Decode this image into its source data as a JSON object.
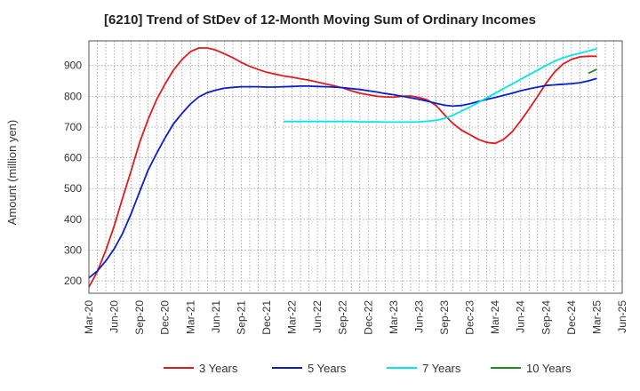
{
  "chart_data": {
    "type": "line",
    "title": "[6210]  Trend of StDev of 12-Month Moving Sum of Ordinary Incomes",
    "ylabel": "Amount (million yen)",
    "xlabel": "",
    "ylim": [
      160,
      980
    ],
    "yticks": [
      200,
      300,
      400,
      500,
      600,
      700,
      800,
      900
    ],
    "x_categories": [
      "Mar-20",
      "Jun-20",
      "Sep-20",
      "Dec-20",
      "Mar-21",
      "Jun-21",
      "Sep-21",
      "Dec-21",
      "Mar-22",
      "Jun-22",
      "Sep-22",
      "Dec-22",
      "Mar-23",
      "Jun-23",
      "Sep-23",
      "Dec-23",
      "Mar-24",
      "Jun-24",
      "Sep-24",
      "Dec-24",
      "Mar-25",
      "Jun-25"
    ],
    "grid": "dotted",
    "legend_position": "bottom",
    "series": [
      {
        "name": "3 Years",
        "color": "#e31a1c",
        "points": [
          [
            0,
            180
          ],
          [
            0.33,
            230
          ],
          [
            0.67,
            300
          ],
          [
            1,
            380
          ],
          [
            1.33,
            470
          ],
          [
            1.67,
            560
          ],
          [
            2,
            650
          ],
          [
            2.33,
            725
          ],
          [
            2.67,
            790
          ],
          [
            3,
            840
          ],
          [
            3.33,
            885
          ],
          [
            3.67,
            920
          ],
          [
            4,
            945
          ],
          [
            4.33,
            957
          ],
          [
            4.67,
            957
          ],
          [
            5,
            950
          ],
          [
            5.33,
            938
          ],
          [
            5.67,
            925
          ],
          [
            6,
            910
          ],
          [
            6.33,
            897
          ],
          [
            6.67,
            887
          ],
          [
            7,
            878
          ],
          [
            7.33,
            872
          ],
          [
            7.67,
            866
          ],
          [
            8,
            862
          ],
          [
            8.33,
            857
          ],
          [
            8.67,
            852
          ],
          [
            9,
            846
          ],
          [
            9.33,
            840
          ],
          [
            9.67,
            834
          ],
          [
            10,
            827
          ],
          [
            10.33,
            818
          ],
          [
            10.67,
            810
          ],
          [
            11,
            805
          ],
          [
            11.33,
            800
          ],
          [
            11.67,
            798
          ],
          [
            12,
            797
          ],
          [
            12.33,
            800
          ],
          [
            12.67,
            801
          ],
          [
            13,
            796
          ],
          [
            13.33,
            788
          ],
          [
            13.67,
            770
          ],
          [
            14,
            740
          ],
          [
            14.33,
            712
          ],
          [
            14.67,
            690
          ],
          [
            15,
            675
          ],
          [
            15.33,
            660
          ],
          [
            15.67,
            650
          ],
          [
            16,
            647
          ],
          [
            16.33,
            660
          ],
          [
            16.67,
            685
          ],
          [
            17,
            720
          ],
          [
            17.33,
            758
          ],
          [
            17.67,
            800
          ],
          [
            18,
            842
          ],
          [
            18.33,
            878
          ],
          [
            18.67,
            905
          ],
          [
            19,
            920
          ],
          [
            19.33,
            928
          ],
          [
            19.67,
            930
          ],
          [
            20,
            930
          ]
        ]
      },
      {
        "name": "5 Years",
        "color": "#0a1fcc",
        "points": [
          [
            0,
            210
          ],
          [
            0.33,
            232
          ],
          [
            0.67,
            265
          ],
          [
            1,
            305
          ],
          [
            1.33,
            355
          ],
          [
            1.67,
            420
          ],
          [
            2,
            490
          ],
          [
            2.33,
            560
          ],
          [
            2.67,
            615
          ],
          [
            3,
            665
          ],
          [
            3.33,
            710
          ],
          [
            3.67,
            745
          ],
          [
            4,
            775
          ],
          [
            4.33,
            798
          ],
          [
            4.67,
            812
          ],
          [
            5,
            820
          ],
          [
            5.33,
            826
          ],
          [
            5.67,
            829
          ],
          [
            6,
            831
          ],
          [
            6.33,
            831
          ],
          [
            6.67,
            831
          ],
          [
            7,
            830
          ],
          [
            7.33,
            830
          ],
          [
            7.67,
            831
          ],
          [
            8,
            832
          ],
          [
            8.33,
            833
          ],
          [
            8.67,
            833
          ],
          [
            9,
            832
          ],
          [
            9.33,
            831
          ],
          [
            9.67,
            830
          ],
          [
            10,
            828
          ],
          [
            10.33,
            825
          ],
          [
            10.67,
            822
          ],
          [
            11,
            818
          ],
          [
            11.33,
            814
          ],
          [
            11.67,
            809
          ],
          [
            12,
            805
          ],
          [
            12.33,
            800
          ],
          [
            12.67,
            795
          ],
          [
            13,
            790
          ],
          [
            13.33,
            784
          ],
          [
            13.67,
            777
          ],
          [
            14,
            771
          ],
          [
            14.33,
            768
          ],
          [
            14.67,
            770
          ],
          [
            15,
            776
          ],
          [
            15.33,
            783
          ],
          [
            15.67,
            790
          ],
          [
            16,
            796
          ],
          [
            16.33,
            803
          ],
          [
            16.67,
            810
          ],
          [
            17,
            818
          ],
          [
            17.33,
            824
          ],
          [
            17.67,
            830
          ],
          [
            18,
            835
          ],
          [
            18.33,
            837
          ],
          [
            18.67,
            839
          ],
          [
            19,
            841
          ],
          [
            19.33,
            844
          ],
          [
            19.67,
            850
          ],
          [
            20,
            858
          ]
        ]
      },
      {
        "name": "7 Years",
        "color": "#00e5ee",
        "points": [
          [
            7.67,
            718
          ],
          [
            8,
            718
          ],
          [
            8.33,
            718
          ],
          [
            8.67,
            718
          ],
          [
            9,
            718
          ],
          [
            9.33,
            718
          ],
          [
            9.67,
            718
          ],
          [
            10,
            718
          ],
          [
            10.33,
            718
          ],
          [
            10.67,
            717
          ],
          [
            11,
            717
          ],
          [
            11.33,
            717
          ],
          [
            11.67,
            716
          ],
          [
            12,
            716
          ],
          [
            12.33,
            716
          ],
          [
            12.67,
            716
          ],
          [
            13,
            717
          ],
          [
            13.33,
            719
          ],
          [
            13.67,
            722
          ],
          [
            14,
            728
          ],
          [
            14.33,
            738
          ],
          [
            14.67,
            752
          ],
          [
            15,
            765
          ],
          [
            15.33,
            780
          ],
          [
            15.67,
            795
          ],
          [
            16,
            810
          ],
          [
            16.33,
            825
          ],
          [
            16.67,
            840
          ],
          [
            17,
            855
          ],
          [
            17.33,
            870
          ],
          [
            17.67,
            885
          ],
          [
            18,
            900
          ],
          [
            18.33,
            914
          ],
          [
            18.67,
            925
          ],
          [
            19,
            933
          ],
          [
            19.33,
            940
          ],
          [
            19.67,
            947
          ],
          [
            20,
            955
          ]
        ]
      },
      {
        "name": "10 Years",
        "color": "#228b22",
        "points": [
          [
            19.67,
            875
          ],
          [
            20,
            888
          ]
        ]
      }
    ]
  }
}
